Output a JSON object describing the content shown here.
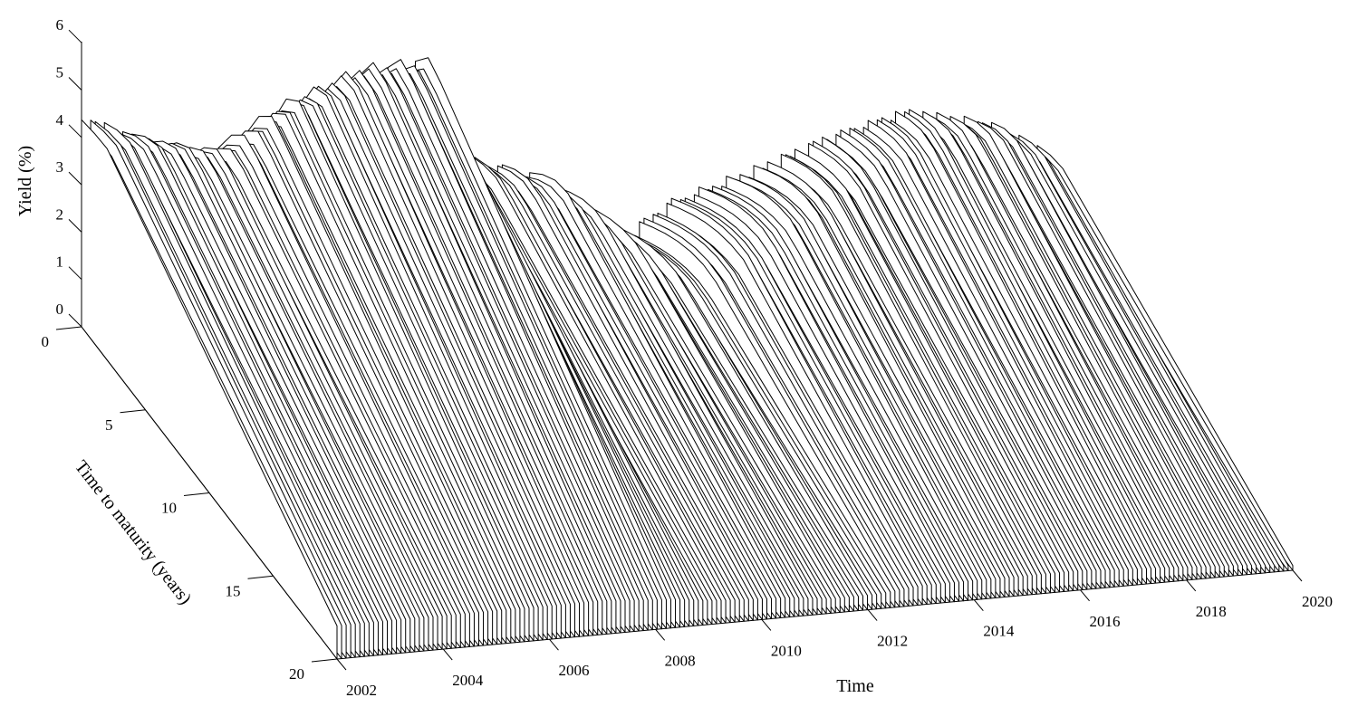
{
  "chart_data": {
    "type": "waterfall-3d",
    "title": "",
    "xlabel": "Time",
    "ylabel": "Time to maturity (years)",
    "zlabel": "Yield (%)",
    "x_ticks": [
      "2002",
      "2004",
      "2006",
      "2008",
      "2010",
      "2012",
      "2014",
      "2016",
      "2018",
      "2020"
    ],
    "y_ticks": [
      "0",
      "5",
      "10",
      "15",
      "20"
    ],
    "z_ticks": [
      "0",
      "1",
      "2",
      "3",
      "4",
      "5",
      "6"
    ],
    "xlim": [
      2002,
      2020
    ],
    "ylim": [
      0,
      20
    ],
    "zlim": [
      0,
      6
    ],
    "maturities": [
      0,
      1,
      2,
      3,
      4,
      5,
      6,
      7,
      8,
      9,
      10,
      11,
      12,
      13,
      14,
      15,
      16,
      17,
      18,
      19,
      20
    ],
    "curve_color": "#000000",
    "fill_color": "#ffffff",
    "key_dates": [
      {
        "t": 2002.0,
        "peak": 4.5,
        "short": 4.4,
        "pmat": 2.0,
        "long": 0.7
      },
      {
        "t": 2004.2,
        "peak": 4.1,
        "short": 3.2,
        "pmat": 2.5,
        "long": 0.7
      },
      {
        "t": 2005.5,
        "peak": 4.9,
        "short": 3.8,
        "pmat": 2.0,
        "long": 0.7
      },
      {
        "t": 2007.0,
        "peak": 5.3,
        "short": 4.6,
        "pmat": 1.5,
        "long": 0.7
      },
      {
        "t": 2008.3,
        "peak": 5.2,
        "short": 4.8,
        "pmat": 1.2,
        "long": 0.6
      },
      {
        "t": 2009.0,
        "peak": 3.0,
        "short": 2.9,
        "pmat": 2.0,
        "long": 0.5
      },
      {
        "t": 2010.5,
        "peak": 2.8,
        "short": 2.2,
        "pmat": 3.0,
        "long": 0.4
      },
      {
        "t": 2011.3,
        "peak": 2.1,
        "short": 1.6,
        "pmat": 4.0,
        "long": 0.3
      },
      {
        "t": 2012.2,
        "peak": 1.6,
        "short": 0.8,
        "pmat": 5.5,
        "long": 0.3
      },
      {
        "t": 2013.0,
        "peak": 2.3,
        "short": 1.4,
        "pmat": 6.0,
        "long": 0.4
      },
      {
        "t": 2014.5,
        "peak": 2.7,
        "short": 1.9,
        "pmat": 5.0,
        "long": 0.4
      },
      {
        "t": 2016.0,
        "peak": 2.9,
        "short": 2.5,
        "pmat": 3.5,
        "long": 0.4
      },
      {
        "t": 2017.5,
        "peak": 3.2,
        "short": 2.9,
        "pmat": 2.5,
        "long": 0.3
      },
      {
        "t": 2019.0,
        "peak": 2.8,
        "short": 2.5,
        "pmat": 2.0,
        "long": 0.2
      },
      {
        "t": 2020.0,
        "peak": 2.1,
        "short": 1.9,
        "pmat": 2.0,
        "long": 0.1
      }
    ],
    "num_curves": 210,
    "grid": false,
    "legend": "none"
  }
}
